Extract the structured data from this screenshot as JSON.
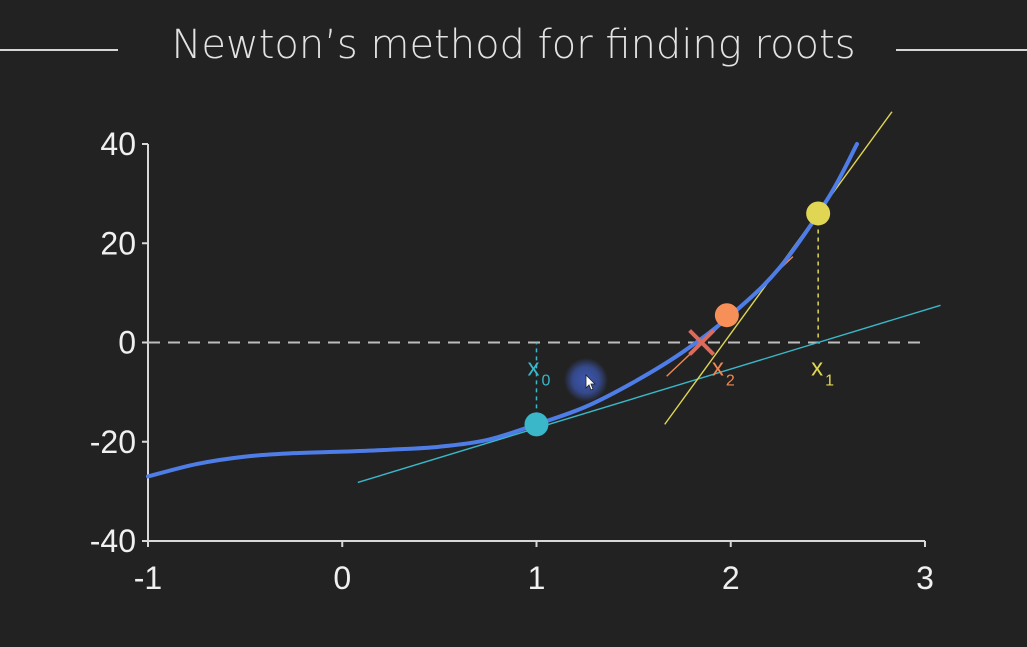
{
  "title": "Newton’s method for finding roots",
  "chart_data": {
    "type": "line",
    "title": "Newton’s method for finding roots",
    "xlim": [
      -1,
      3
    ],
    "ylim": [
      -40,
      40
    ],
    "xticks": [
      -1,
      0,
      1,
      2,
      3
    ],
    "yticks": [
      40,
      20,
      0,
      -20,
      -40
    ],
    "function_samples": {
      "x": [
        -1.0,
        -0.75,
        -0.5,
        -0.25,
        0.0,
        0.25,
        0.5,
        0.75,
        1.0,
        1.25,
        1.5,
        1.75,
        2.0,
        2.25,
        2.5,
        2.65
      ],
      "y": [
        -27,
        -24.5,
        -23,
        -22.3,
        -22,
        -21.6,
        -21,
        -19.6,
        -16.5,
        -13,
        -8,
        -2,
        5.5,
        15,
        29,
        40
      ]
    },
    "tangent_lines": [
      {
        "name": "tangent at x0",
        "color": "#3ab7c9",
        "x": [
          0.08,
          3.08
        ],
        "y": [
          -28.2,
          7.5
        ]
      },
      {
        "name": "tangent at x1",
        "color": "#e0d653",
        "x": [
          1.66,
          2.83
        ],
        "y": [
          -16.5,
          46.5
        ]
      },
      {
        "name": "tangent at x2",
        "color": "#f08850",
        "x": [
          1.67,
          2.32
        ],
        "y": [
          -6.8,
          17.3
        ]
      }
    ],
    "points": [
      {
        "label": "x",
        "sub": "0",
        "x": 1.0,
        "y": -16.5,
        "color": "#3ab7c9"
      },
      {
        "label": "x",
        "sub": "1",
        "x": 2.45,
        "y": 26.0,
        "color": "#e0d653"
      },
      {
        "label": "",
        "sub": "",
        "x": 1.98,
        "y": 5.5,
        "color": "#f79058"
      }
    ],
    "axis_markers": [
      {
        "label": "x",
        "sub": "1",
        "x": 2.45,
        "color": "#e0d653"
      },
      {
        "label": "x",
        "sub": "2",
        "x": 1.98,
        "color": "#f08850"
      }
    ],
    "root_marker": {
      "x": 1.85,
      "y": 0,
      "color": "#e06a5a"
    },
    "zero_line": true
  },
  "colors": {
    "curve": "#4f7de8",
    "axis": "#d8d8d8",
    "zero_line": "#bdbdbd",
    "cursor_glow": "#3d5ab8"
  }
}
